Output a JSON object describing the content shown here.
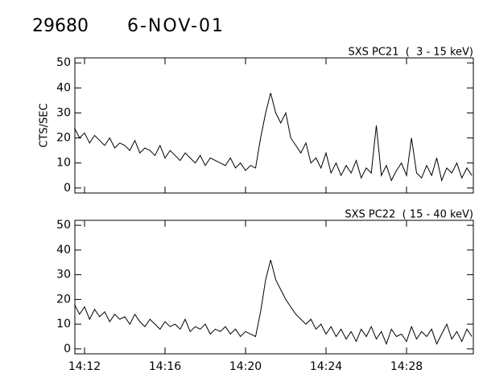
{
  "title": "29680",
  "date": "6-NOV-01",
  "chart_data": [
    {
      "type": "line",
      "title": "SXS PC21  (  3 - 15 keV)",
      "y_label": "CTS/SEC",
      "color": "#000000",
      "xlim": [
        851.52,
        871.32
      ],
      "ylim": [
        -2,
        52
      ],
      "yticks": [
        0,
        10,
        20,
        30,
        40,
        50
      ],
      "x": [
        851.5,
        851.75,
        852,
        852.25,
        852.5,
        852.75,
        853,
        853.25,
        853.5,
        853.75,
        854,
        854.25,
        854.5,
        854.75,
        855,
        855.25,
        855.5,
        855.75,
        856,
        856.25,
        856.5,
        856.75,
        857,
        857.25,
        857.5,
        857.75,
        858,
        858.25,
        858.5,
        858.75,
        859,
        859.25,
        859.5,
        859.75,
        860,
        860.25,
        860.5,
        860.75,
        861,
        861.25,
        861.5,
        861.75,
        862,
        862.25,
        862.5,
        862.75,
        863,
        863.25,
        863.5,
        863.75,
        864,
        864.25,
        864.5,
        864.75,
        865,
        865.25,
        865.5,
        865.75,
        866,
        866.25,
        866.5,
        866.75,
        867,
        867.25,
        867.5,
        867.75,
        868,
        868.25,
        868.5,
        868.75,
        869,
        869.25,
        869.5,
        869.75,
        870,
        870.25,
        870.5,
        870.75,
        871,
        871.25
      ],
      "values": [
        24,
        20,
        22,
        18,
        21,
        19,
        17,
        20,
        16,
        18,
        17,
        15,
        19,
        14,
        16,
        15,
        13,
        17,
        12,
        15,
        13,
        11,
        14,
        12,
        10,
        13,
        9,
        12,
        11,
        10,
        9,
        12,
        8,
        10,
        7,
        9,
        8,
        20,
        30,
        38,
        30,
        26,
        30,
        20,
        17,
        14,
        18,
        10,
        12,
        8,
        14,
        6,
        10,
        5,
        9,
        6,
        11,
        4,
        8,
        6,
        25,
        5,
        9,
        3,
        7,
        10,
        5,
        20,
        6,
        4,
        9,
        5,
        12,
        3,
        8,
        6,
        10,
        4,
        8,
        5
      ]
    },
    {
      "type": "line",
      "title": "SXS PC22  ( 15 - 40 keV)",
      "color": "#000000",
      "xlim": [
        851.52,
        871.32
      ],
      "ylim": [
        -2,
        52
      ],
      "yticks": [
        0,
        10,
        20,
        30,
        40,
        50
      ],
      "xticks": [
        {
          "value": 852,
          "label": "14:12"
        },
        {
          "value": 856,
          "label": "14:16"
        },
        {
          "value": 860,
          "label": "14:20"
        },
        {
          "value": 864,
          "label": "14:24"
        },
        {
          "value": 868,
          "label": "14:28"
        }
      ],
      "x": [
        851.5,
        851.75,
        852,
        852.25,
        852.5,
        852.75,
        853,
        853.25,
        853.5,
        853.75,
        854,
        854.25,
        854.5,
        854.75,
        855,
        855.25,
        855.5,
        855.75,
        856,
        856.25,
        856.5,
        856.75,
        857,
        857.25,
        857.5,
        857.75,
        858,
        858.25,
        858.5,
        858.75,
        859,
        859.25,
        859.5,
        859.75,
        860,
        860.25,
        860.5,
        860.75,
        861,
        861.25,
        861.5,
        861.75,
        862,
        862.25,
        862.5,
        862.75,
        863,
        863.25,
        863.5,
        863.75,
        864,
        864.25,
        864.5,
        864.75,
        865,
        865.25,
        865.5,
        865.75,
        866,
        866.25,
        866.5,
        866.75,
        867,
        867.25,
        867.5,
        867.75,
        868,
        868.25,
        868.5,
        868.75,
        869,
        869.25,
        869.5,
        869.75,
        870,
        870.25,
        870.5,
        870.75,
        871,
        871.25
      ],
      "values": [
        18,
        14,
        17,
        12,
        16,
        13,
        15,
        11,
        14,
        12,
        13,
        10,
        14,
        11,
        9,
        12,
        10,
        8,
        11,
        9,
        10,
        8,
        12,
        7,
        9,
        8,
        10,
        6,
        8,
        7,
        9,
        6,
        8,
        5,
        7,
        6,
        5,
        15,
        28,
        36,
        28,
        24,
        20,
        17,
        14,
        12,
        10,
        12,
        8,
        10,
        6,
        9,
        5,
        8,
        4,
        7,
        3,
        8,
        5,
        9,
        4,
        7,
        2,
        8,
        5,
        6,
        3,
        9,
        4,
        7,
        5,
        8,
        2,
        6,
        10,
        4,
        7,
        3,
        8,
        5
      ]
    }
  ]
}
